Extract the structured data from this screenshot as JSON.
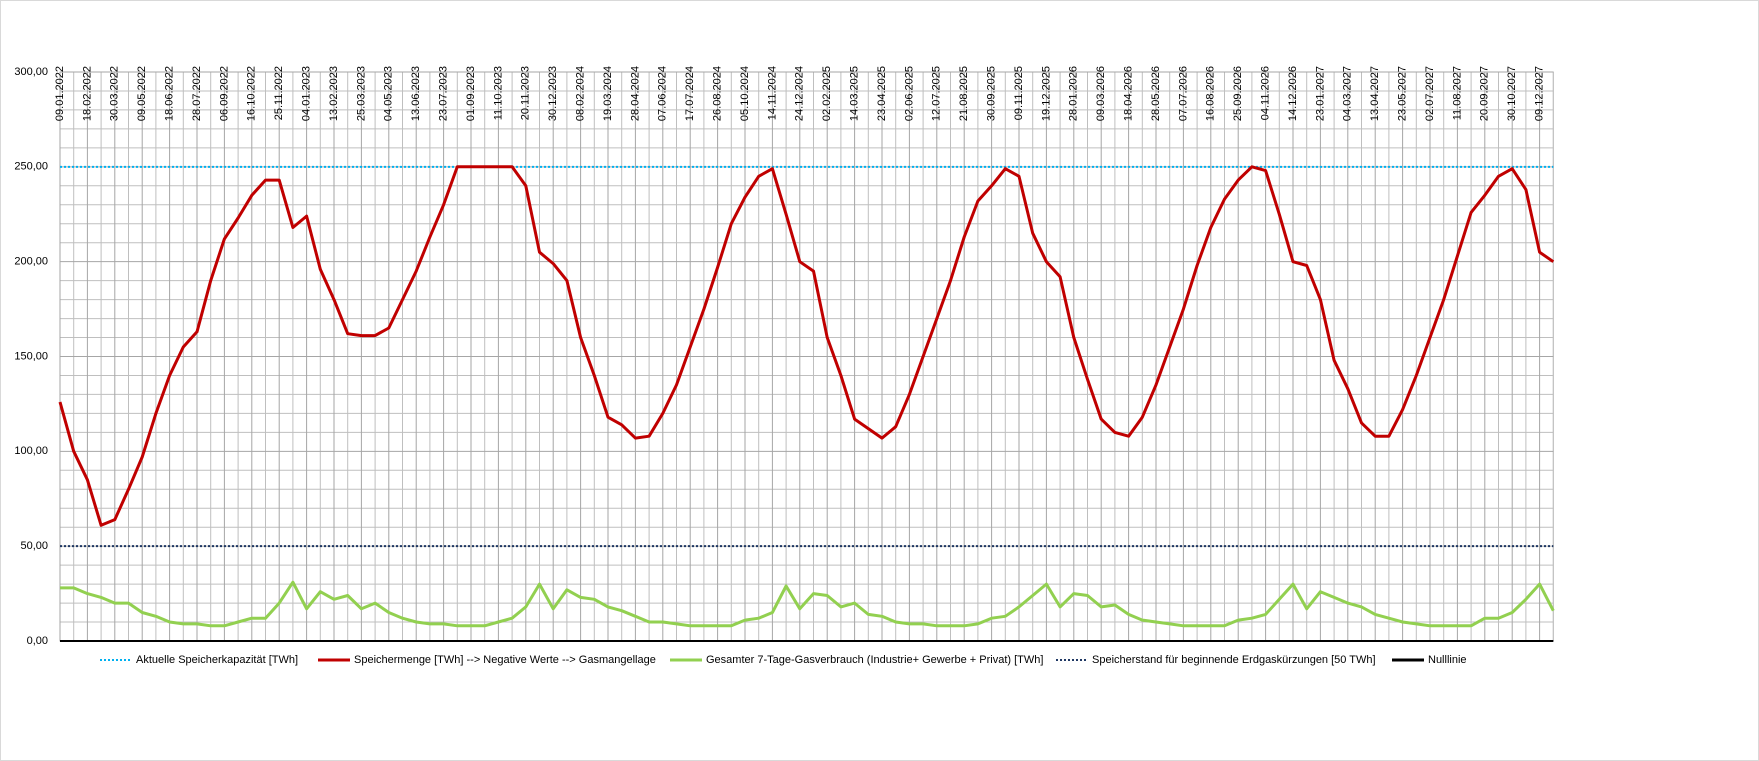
{
  "chart_data": {
    "type": "line",
    "categories": [
      "09.01.2022",
      null,
      "18.02.2022",
      null,
      "30.03.2022",
      null,
      "09.05.2022",
      null,
      "18.06.2022",
      null,
      "28.07.2022",
      null,
      "06.09.2022",
      null,
      "16.10.2022",
      null,
      "25.11.2022",
      null,
      "04.01.2023",
      null,
      "13.02.2023",
      null,
      "25.03.2023",
      null,
      "04.05.2023",
      null,
      "13.06.2023",
      null,
      "23.07.2023",
      null,
      "01.09.2023",
      null,
      "11.10.2023",
      null,
      "20.11.2023",
      null,
      "30.12.2023",
      null,
      "08.02.2024",
      null,
      "19.03.2024",
      null,
      "28.04.2024",
      null,
      "07.06.2024",
      null,
      "17.07.2024",
      null,
      "26.08.2024",
      null,
      "05.10.2024",
      null,
      "14.11.2024",
      null,
      "24.12.2024",
      null,
      "02.02.2025",
      null,
      "14.03.2025",
      null,
      "23.04.2025",
      null,
      "02.06.2025",
      null,
      "12.07.2025",
      null,
      "21.08.2025",
      null,
      "30.09.2025",
      null,
      "09.11.2025",
      null,
      "19.12.2025",
      null,
      "28.01.2026",
      null,
      "09.03.2026",
      null,
      "18.04.2026",
      null,
      "28.05.2026",
      null,
      "07.07.2026",
      null,
      "16.08.2026",
      null,
      "25.09.2026",
      null,
      "04.11.2026",
      null,
      "14.12.2026",
      null,
      "23.01.2027",
      null,
      "04.03.2027",
      null,
      "13.04.2027",
      null,
      "23.05.2027",
      null,
      "02.07.2027",
      null,
      "11.08.2027",
      null,
      "20.09.2027",
      null,
      "30.10.2027",
      null,
      "09.12.2027",
      null
    ],
    "series": [
      {
        "name": "Aktuelle Speicherkapazität [TWh]",
        "color": "#00b0f0",
        "dash": "dotted",
        "value": 250
      },
      {
        "name": "Speichermenge [TWh] --> Negative Werte --> Gasmangellage",
        "color": "#c00000",
        "values": [
          126,
          100,
          85,
          61,
          64,
          80,
          97,
          120,
          140,
          155,
          163,
          190,
          212,
          223,
          235,
          243,
          243,
          218,
          224,
          196,
          180,
          162,
          161,
          161,
          165,
          180,
          195,
          213,
          230,
          250,
          250,
          250,
          250,
          250,
          240,
          205,
          199,
          190,
          160,
          140,
          118,
          114,
          107,
          108,
          120,
          135,
          155,
          175,
          197,
          220,
          234,
          245,
          249,
          225,
          200,
          195,
          160,
          140,
          117,
          112,
          107,
          113,
          130,
          150,
          170,
          190,
          213,
          232,
          240,
          249,
          245,
          215,
          200,
          192,
          160,
          138,
          117,
          110,
          108,
          118,
          135,
          155,
          175,
          198,
          218,
          233,
          243,
          250,
          248,
          225,
          200,
          198,
          180,
          148,
          133,
          115,
          108,
          108,
          122,
          140,
          160,
          180,
          203,
          226,
          235,
          245,
          249,
          238,
          205,
          200
        ]
      },
      {
        "name": "Gesamter 7-Tage-Gasverbrauch (Industrie+ Gewerbe + Privat) [TWh]",
        "color": "#92d050",
        "values": [
          28,
          28,
          25,
          23,
          20,
          20,
          15,
          13,
          10,
          9,
          9,
          8,
          8,
          10,
          12,
          12,
          20,
          31,
          17,
          26,
          22,
          24,
          17,
          20,
          15,
          12,
          10,
          9,
          9,
          8,
          8,
          8,
          10,
          12,
          18,
          30,
          17,
          27,
          23,
          22,
          18,
          16,
          13,
          10,
          10,
          9,
          8,
          8,
          8,
          8,
          11,
          12,
          15,
          29,
          17,
          25,
          24,
          18,
          20,
          14,
          13,
          10,
          9,
          9,
          8,
          8,
          8,
          9,
          12,
          13,
          18,
          24,
          30,
          18,
          25,
          24,
          18,
          19,
          14,
          11,
          10,
          9,
          8,
          8,
          8,
          8,
          11,
          12,
          14,
          22,
          30,
          17,
          26,
          23,
          20,
          18,
          14,
          12,
          10,
          9,
          8,
          8,
          8,
          8,
          12,
          12,
          15,
          22,
          30,
          16
        ]
      },
      {
        "name": "Speicherstand für beginnende Erdgaskürzungen [50 TWh]",
        "color": "#1f3864",
        "dash": "dotted",
        "value": 50
      },
      {
        "name": "Nulllinie",
        "color": "#000000",
        "value": 0
      }
    ],
    "ylim": [
      0,
      300
    ],
    "yticks": [
      {
        "value": 0,
        "label": "0,00"
      },
      {
        "value": 50,
        "label": "50,00"
      },
      {
        "value": 100,
        "label": "100,00"
      },
      {
        "value": 150,
        "label": "150,00"
      },
      {
        "value": 200,
        "label": "200,00"
      },
      {
        "value": 250,
        "label": "250,00"
      },
      {
        "value": 300,
        "label": "300,00"
      }
    ],
    "grid": true,
    "legend": "bottom"
  }
}
